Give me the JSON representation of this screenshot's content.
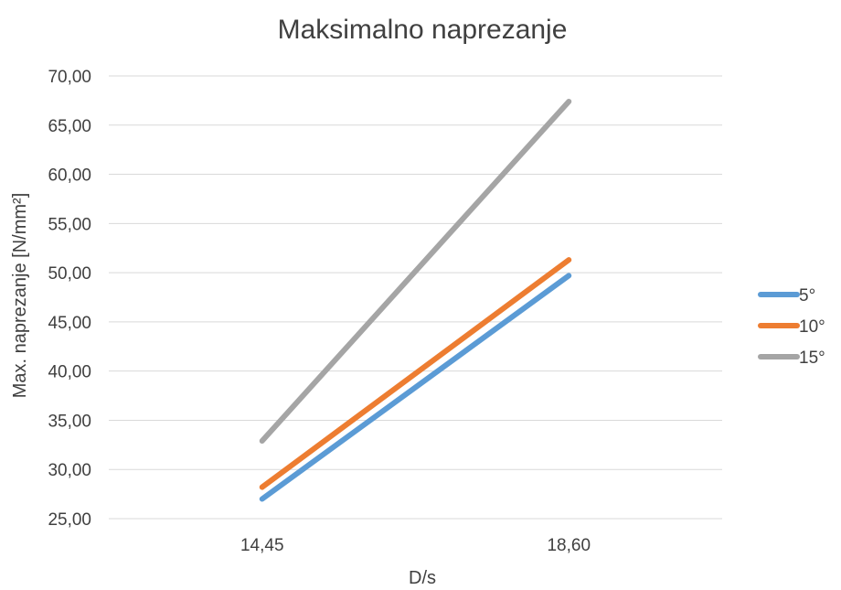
{
  "chart_data": {
    "type": "line",
    "title": "Maksimalno naprezanje",
    "xlabel": "D/s",
    "ylabel": "Max. naprezanje [N/mm²]",
    "categories": [
      "14,45",
      "18,60"
    ],
    "ylim": [
      25,
      70
    ],
    "y_ticks": [
      "25,00",
      "30,00",
      "35,00",
      "40,00",
      "45,00",
      "50,00",
      "55,00",
      "60,00",
      "65,00",
      "70,00"
    ],
    "grid": true,
    "legend_position": "right",
    "series": [
      {
        "name": "5°",
        "color": "#5b9bd5",
        "values": [
          27.0,
          49.7
        ]
      },
      {
        "name": "10°",
        "color": "#ed7d31",
        "values": [
          28.2,
          51.3
        ]
      },
      {
        "name": "15°",
        "color": "#a5a5a5",
        "values": [
          32.9,
          67.4
        ]
      }
    ]
  }
}
